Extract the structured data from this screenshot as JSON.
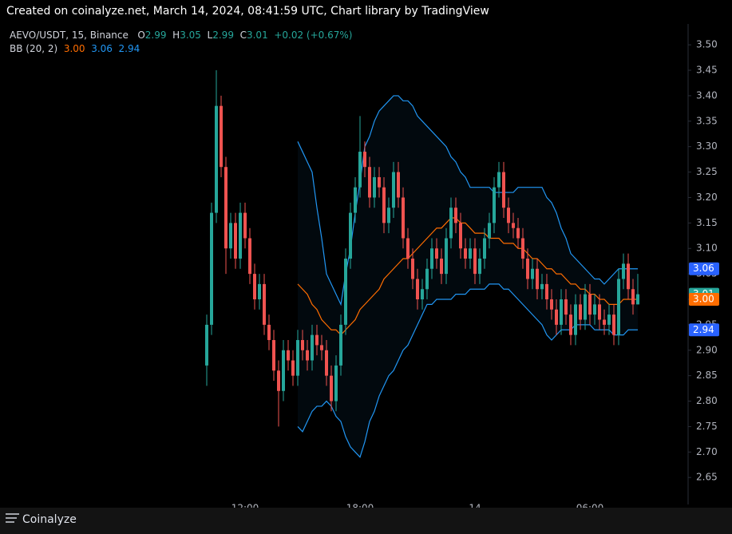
{
  "header": {
    "title": "Created on coinalyze.net, March 14, 2024, 08:41:59 UTC, Chart library by TradingView"
  },
  "footer": {
    "brand": "Coinalyze"
  },
  "chart_data": {
    "type": "candlestick",
    "symbol": "AEVO/USDT, 15, Binance",
    "ohlc_letters": [
      "O",
      "H",
      "L",
      "C"
    ],
    "change_label": "+0.02 (+0.67%)",
    "bb_label": "BB (20, 2)",
    "up_color": "#26a69a",
    "down_color": "#ef5350",
    "ylim": [
      2.597,
      3.541
    ],
    "yticks": [
      2.65,
      {
        "value": 2.7,
        "label": "2.70"
      },
      2.75,
      {
        "value": 2.8,
        "label": "2.80"
      },
      2.85,
      {
        "value": 2.9,
        "label": "2.90"
      },
      2.95,
      {
        "value": 3,
        "label": "3.00"
      },
      3.05,
      {
        "value": 3.1,
        "label": "3.10"
      },
      3.15,
      {
        "value": 3.2,
        "label": "3.20"
      },
      3.25,
      {
        "value": 3.3,
        "label": "3.30"
      },
      3.35,
      {
        "value": 3.4,
        "label": "3.40"
      },
      3.45,
      {
        "value": 3.5,
        "label": "3.50"
      }
    ],
    "categories": [
      null,
      null,
      null,
      null,
      null,
      null,
      null,
      null,
      "12:00",
      null,
      null,
      null,
      null,
      null,
      null,
      null,
      null,
      null,
      null,
      null,
      null,
      null,
      null,
      null,
      null,
      null,
      null,
      null,
      null,
      null,
      null,
      null,
      "18:00",
      null,
      null,
      null,
      null,
      null,
      null,
      null,
      null,
      null,
      null,
      null,
      null,
      null,
      null,
      null,
      null,
      null,
      null,
      null,
      null,
      null,
      null,
      null,
      "14",
      null,
      null,
      null,
      null,
      null,
      null,
      null,
      null,
      null,
      null,
      null,
      null,
      null,
      null,
      null,
      null,
      null,
      null,
      null,
      null,
      null,
      null,
      null,
      "06:00",
      null,
      null,
      null,
      null,
      null,
      null,
      null,
      null,
      null,
      null
    ],
    "open": [
      2.87,
      2.95,
      3.17,
      3.38,
      3.26,
      3.1,
      3.15,
      3.08,
      3.17,
      3.12,
      3.05,
      3.0,
      3.03,
      2.95,
      2.92,
      2.86,
      2.82,
      2.9,
      2.88,
      2.85,
      2.92,
      2.9,
      2.88,
      2.93,
      2.91,
      2.9,
      2.85,
      2.8,
      2.87,
      2.95,
      3.08,
      3.17,
      3.22,
      3.29,
      3.26,
      3.2,
      3.24,
      3.22,
      3.15,
      3.18,
      3.25,
      3.2,
      3.12,
      3.08,
      3.04,
      3.0,
      3.02,
      3.06,
      3.1,
      3.08,
      3.05,
      3.12,
      3.18,
      3.15,
      3.1,
      3.08,
      3.1,
      3.05,
      3.08,
      3.12,
      3.15,
      3.22,
      3.25,
      3.18,
      3.15,
      3.14,
      3.12,
      3.08,
      3.04,
      3.06,
      3.02,
      3.03,
      3.0,
      2.98,
      2.95,
      3.0,
      2.97,
      2.93,
      2.99,
      2.96,
      3.01,
      2.97,
      2.99,
      2.96,
      2.95,
      2.97,
      2.93,
      3.04,
      3.07,
      3.02,
      2.99
    ],
    "high": [
      2.97,
      3.19,
      3.45,
      3.4,
      3.28,
      3.17,
      3.17,
      3.19,
      3.19,
      3.14,
      3.07,
      3.05,
      3.05,
      2.97,
      2.94,
      2.88,
      2.92,
      2.92,
      2.9,
      2.94,
      2.94,
      2.92,
      2.95,
      2.95,
      2.93,
      2.92,
      2.87,
      2.89,
      2.97,
      3.1,
      3.19,
      3.24,
      3.36,
      3.31,
      3.28,
      3.26,
      3.26,
      3.24,
      3.2,
      3.27,
      3.27,
      3.22,
      3.14,
      3.1,
      3.06,
      3.04,
      3.08,
      3.12,
      3.12,
      3.1,
      3.14,
      3.2,
      3.2,
      3.17,
      3.12,
      3.12,
      3.12,
      3.1,
      3.14,
      3.17,
      3.24,
      3.27,
      3.27,
      3.2,
      3.17,
      3.16,
      3.14,
      3.1,
      3.08,
      3.08,
      3.05,
      3.05,
      3.02,
      3.0,
      3.02,
      3.02,
      2.99,
      3.01,
      3.01,
      3.03,
      3.03,
      3.01,
      3.01,
      2.98,
      2.99,
      2.99,
      3.06,
      3.09,
      3.09,
      3.04,
      3.05
    ],
    "low": [
      2.83,
      2.93,
      3.15,
      3.24,
      3.05,
      3.08,
      3.06,
      3.06,
      3.1,
      3.03,
      2.98,
      2.98,
      2.93,
      2.9,
      2.84,
      2.75,
      2.8,
      2.86,
      2.83,
      2.83,
      2.88,
      2.86,
      2.86,
      2.89,
      2.88,
      2.83,
      2.78,
      2.78,
      2.85,
      2.93,
      3.06,
      3.15,
      3.2,
      3.24,
      3.18,
      3.18,
      3.2,
      3.13,
      3.13,
      3.16,
      3.18,
      3.1,
      3.06,
      3.02,
      2.98,
      2.98,
      3.0,
      3.04,
      3.06,
      3.03,
      3.03,
      3.1,
      3.13,
      3.08,
      3.06,
      3.06,
      3.03,
      3.03,
      3.06,
      3.1,
      3.13,
      3.2,
      3.16,
      3.13,
      3.12,
      3.1,
      3.06,
      3.02,
      3.02,
      3.0,
      3.0,
      2.98,
      2.96,
      2.93,
      2.93,
      2.95,
      2.91,
      2.91,
      2.94,
      2.94,
      2.95,
      2.95,
      2.94,
      2.93,
      2.93,
      2.91,
      2.91,
      3.02,
      3.0,
      2.97,
      2.99
    ],
    "close": [
      2.95,
      3.17,
      3.38,
      3.26,
      3.1,
      3.15,
      3.08,
      3.17,
      3.12,
      3.05,
      3.0,
      3.03,
      2.95,
      2.92,
      2.86,
      2.82,
      2.9,
      2.88,
      2.85,
      2.92,
      2.9,
      2.88,
      2.93,
      2.91,
      2.9,
      2.85,
      2.8,
      2.87,
      2.95,
      3.08,
      3.17,
      3.22,
      3.29,
      3.26,
      3.2,
      3.24,
      3.22,
      3.15,
      3.18,
      3.25,
      3.2,
      3.12,
      3.08,
      3.04,
      3.0,
      3.02,
      3.06,
      3.1,
      3.08,
      3.05,
      3.12,
      3.18,
      3.15,
      3.1,
      3.08,
      3.1,
      3.05,
      3.08,
      3.12,
      3.15,
      3.22,
      3.25,
      3.18,
      3.15,
      3.14,
      3.12,
      3.08,
      3.04,
      3.06,
      3.02,
      3.03,
      3.0,
      2.98,
      2.95,
      3.0,
      2.97,
      2.93,
      2.99,
      2.96,
      3.01,
      2.97,
      2.99,
      2.96,
      2.95,
      2.97,
      2.93,
      3.04,
      3.07,
      3.02,
      2.99,
      3.01
    ],
    "bb_upper": {
      "color": "#2962ff",
      "last": {
        "value": 3.06,
        "label": "3.06"
      },
      "values": [
        null,
        null,
        null,
        null,
        null,
        null,
        null,
        null,
        null,
        null,
        null,
        null,
        null,
        null,
        null,
        null,
        null,
        null,
        null,
        3.31,
        3.29,
        3.27,
        3.25,
        3.18,
        3.12,
        3.05,
        3.03,
        3.01,
        2.99,
        3.05,
        3.1,
        3.17,
        3.23,
        3.3,
        3.32,
        3.35,
        3.37,
        3.38,
        3.39,
        3.4,
        3.4,
        3.39,
        3.39,
        3.38,
        3.36,
        3.35,
        3.34,
        3.33,
        3.32,
        3.31,
        3.3,
        3.28,
        3.27,
        3.25,
        3.24,
        3.22,
        3.22,
        3.22,
        3.22,
        3.22,
        3.21,
        3.21,
        3.21,
        3.21,
        3.21,
        3.22,
        3.22,
        3.22,
        3.22,
        3.22,
        3.22,
        3.2,
        3.19,
        3.17,
        3.14,
        3.12,
        3.09,
        3.08,
        3.07,
        3.06,
        3.05,
        3.04,
        3.04,
        3.03,
        3.04,
        3.05,
        3.06,
        3.06,
        3.06,
        3.06,
        3.06
      ]
    },
    "bb_middle": {
      "color": "#ff6d00",
      "last": {
        "value": 3,
        "label": "3.00"
      },
      "values": [
        null,
        null,
        null,
        null,
        null,
        null,
        null,
        null,
        null,
        null,
        null,
        null,
        null,
        null,
        null,
        null,
        null,
        null,
        null,
        3.03,
        3.02,
        3.01,
        2.99,
        2.98,
        2.96,
        2.95,
        2.94,
        2.94,
        2.93,
        2.94,
        2.95,
        2.96,
        2.98,
        2.99,
        3.0,
        3.01,
        3.02,
        3.04,
        3.05,
        3.06,
        3.07,
        3.08,
        3.08,
        3.09,
        3.1,
        3.11,
        3.12,
        3.13,
        3.14,
        3.14,
        3.15,
        3.16,
        3.16,
        3.15,
        3.15,
        3.14,
        3.13,
        3.13,
        3.13,
        3.12,
        3.12,
        3.12,
        3.11,
        3.11,
        3.11,
        3.1,
        3.1,
        3.09,
        3.08,
        3.08,
        3.07,
        3.06,
        3.06,
        3.05,
        3.05,
        3.04,
        3.03,
        3.03,
        3.02,
        3.02,
        3.01,
        3.01,
        3.0,
        3.0,
        2.99,
        2.99,
        2.99,
        3.0,
        3.0,
        3.0,
        3.0
      ]
    },
    "bb_lower": {
      "color": "#2962ff",
      "last": {
        "value": 2.94,
        "label": "2.94"
      },
      "values": [
        null,
        null,
        null,
        null,
        null,
        null,
        null,
        null,
        null,
        null,
        null,
        null,
        null,
        null,
        null,
        null,
        null,
        null,
        null,
        2.75,
        2.74,
        2.76,
        2.78,
        2.79,
        2.79,
        2.8,
        2.79,
        2.77,
        2.76,
        2.73,
        2.71,
        2.7,
        2.69,
        2.72,
        2.76,
        2.78,
        2.81,
        2.83,
        2.85,
        2.86,
        2.88,
        2.9,
        2.91,
        2.93,
        2.95,
        2.97,
        2.99,
        2.99,
        3.0,
        3.0,
        3.0,
        3.0,
        3.01,
        3.01,
        3.01,
        3.02,
        3.02,
        3.02,
        3.02,
        3.03,
        3.03,
        3.03,
        3.02,
        3.02,
        3.01,
        3.0,
        2.99,
        2.98,
        2.97,
        2.96,
        2.95,
        2.93,
        2.92,
        2.93,
        2.94,
        2.94,
        2.94,
        2.95,
        2.95,
        2.95,
        2.95,
        2.94,
        2.94,
        2.94,
        2.94,
        2.93,
        2.93,
        2.93,
        2.94,
        2.94,
        2.94
      ]
    }
  }
}
